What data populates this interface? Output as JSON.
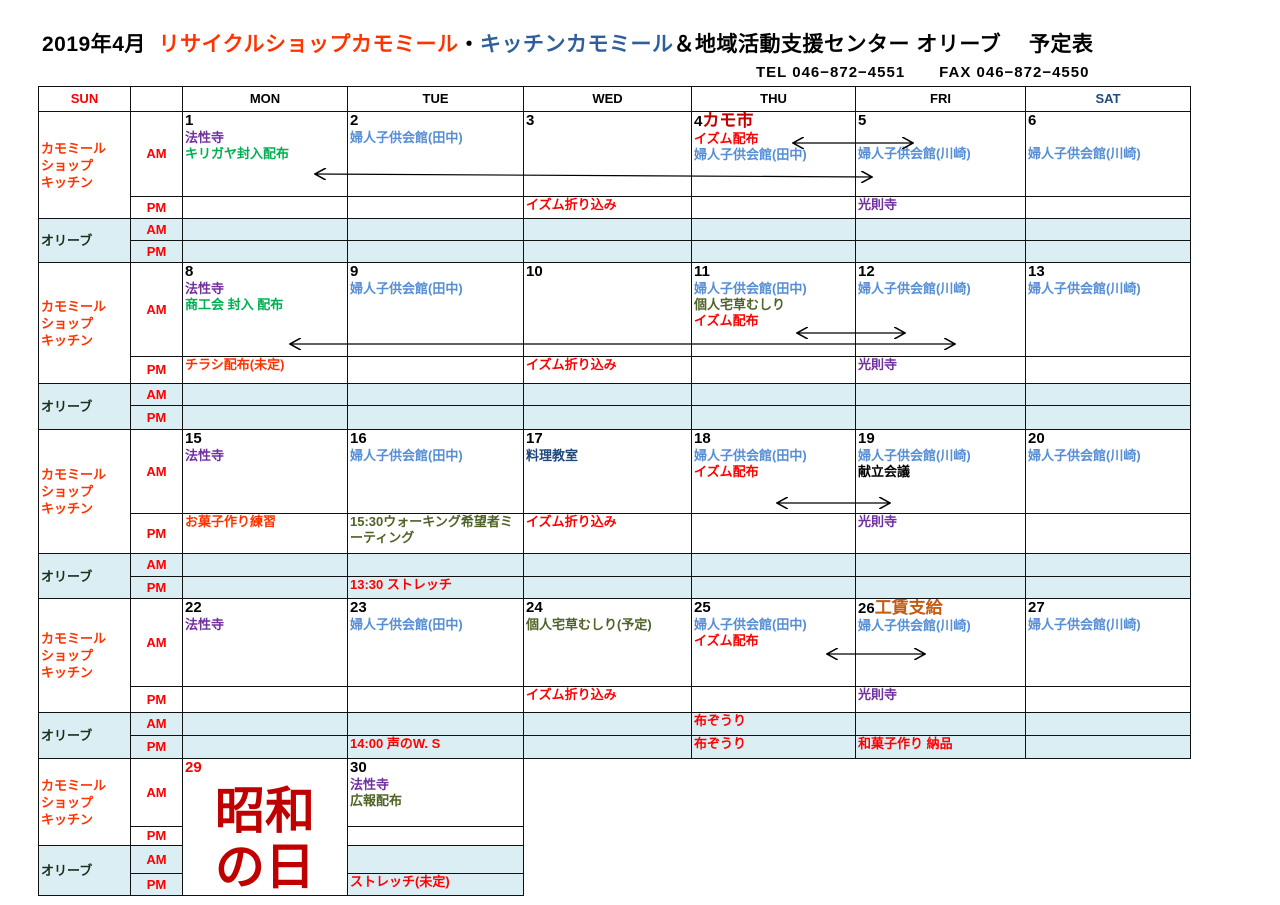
{
  "title": {
    "date": "2019年4月",
    "shop": "リサイクルショップカモミール",
    "sep": "・",
    "kitchen": "キッチンカモミール",
    "rest": "＆地域活動支援センター オリーブ　 予定表"
  },
  "contact": {
    "tel": "TEL 046−872−4551",
    "fax": "FAX 046−872−4550"
  },
  "colors": {
    "purple": "#7030a0",
    "blue": "#558ed5",
    "green": "#00b050",
    "red": "#ff0000",
    "orange": "#ff3300",
    "olive": "#4f6228",
    "navy": "#1f497d",
    "darkred": "#c00000",
    "brown": "#c55a11",
    "black": "#000000"
  },
  "header": [
    "SUN",
    "",
    "MON",
    "TUE",
    "WED",
    "THU",
    "FRI",
    "SAT"
  ],
  "labels": {
    "kamomile": "カモミール\nショップ\nキッチン",
    "olive": "オリーブ",
    "am": "AM",
    "pm": "PM"
  },
  "weeks": [
    {
      "days": [
        {
          "date": "1",
          "am": [
            {
              "t": "法性寺",
              "c": "purple"
            },
            {
              "t": "キリガヤ封入配布",
              "c": "green"
            }
          ]
        },
        {
          "date": "2",
          "am": [
            {
              "t": "婦人子供会館(田中)",
              "c": "blue"
            }
          ]
        },
        {
          "date": "3",
          "pm": [
            {
              "t": "イズム折り込み",
              "c": "red"
            }
          ]
        },
        {
          "date": "4",
          "title": "カモ市",
          "title_color": "darkred",
          "am": [
            {
              "t": "イズム配布",
              "c": "red"
            },
            {
              "t": "婦人子供会館(田中)",
              "c": "blue"
            }
          ]
        },
        {
          "date": "5",
          "am": [
            {
              "t": "",
              "c": "black"
            },
            {
              "t": "婦人子供会館(川崎)",
              "c": "blue"
            }
          ],
          "pm": [
            {
              "t": "光則寺",
              "c": "purple"
            }
          ]
        },
        {
          "date": "6",
          "am": [
            {
              "t": "",
              "c": "black"
            },
            {
              "t": "婦人子供会館(川崎)",
              "c": "blue"
            }
          ]
        }
      ]
    },
    {
      "days": [
        {
          "date": "8",
          "am": [
            {
              "t": "法性寺",
              "c": "purple"
            },
            {
              "t": "商工会 封入 配布",
              "c": "green"
            }
          ],
          "pm": [
            {
              "t": "チラシ配布(未定)",
              "c": "orange"
            }
          ]
        },
        {
          "date": "9",
          "am": [
            {
              "t": "婦人子供会館(田中)",
              "c": "blue"
            }
          ]
        },
        {
          "date": "10",
          "pm": [
            {
              "t": "イズム折り込み",
              "c": "red"
            }
          ]
        },
        {
          "date": "11",
          "am": [
            {
              "t": "婦人子供会館(田中)",
              "c": "blue"
            },
            {
              "t": "個人宅草むしり",
              "c": "olive"
            },
            {
              "t": "イズム配布",
              "c": "red"
            }
          ]
        },
        {
          "date": "12",
          "am": [
            {
              "t": "婦人子供会館(川崎)",
              "c": "blue"
            }
          ],
          "pm": [
            {
              "t": "光則寺",
              "c": "purple"
            }
          ]
        },
        {
          "date": "13",
          "am": [
            {
              "t": "婦人子供会館(川崎)",
              "c": "blue"
            }
          ]
        }
      ]
    },
    {
      "days": [
        {
          "date": "15",
          "am": [
            {
              "t": "法性寺",
              "c": "purple"
            }
          ],
          "pm": [
            {
              "t": "お菓子作り練習",
              "c": "orange"
            }
          ]
        },
        {
          "date": "16",
          "am": [
            {
              "t": "婦人子供会館(田中)",
              "c": "blue"
            }
          ],
          "pm": [
            {
              "t": "15:30ウォーキング希望者ミーティング",
              "c": "olive"
            }
          ],
          "opm": [
            {
              "t": "13:30 ストレッチ",
              "c": "red"
            }
          ]
        },
        {
          "date": "17",
          "am": [
            {
              "t": "料理教室",
              "c": "navy"
            }
          ],
          "pm": [
            {
              "t": "イズム折り込み",
              "c": "red"
            }
          ]
        },
        {
          "date": "18",
          "am": [
            {
              "t": "婦人子供会館(田中)",
              "c": "blue"
            },
            {
              "t": "イズム配布",
              "c": "red"
            }
          ]
        },
        {
          "date": "19",
          "am": [
            {
              "t": "婦人子供会館(川崎)",
              "c": "blue"
            },
            {
              "t": "献立会議",
              "c": "black"
            }
          ],
          "pm": [
            {
              "t": "光則寺",
              "c": "purple"
            }
          ]
        },
        {
          "date": "20",
          "am": [
            {
              "t": "婦人子供会館(川崎)",
              "c": "blue"
            }
          ]
        }
      ]
    },
    {
      "days": [
        {
          "date": "22",
          "am": [
            {
              "t": "法性寺",
              "c": "purple"
            }
          ]
        },
        {
          "date": "23",
          "am": [
            {
              "t": "婦人子供会館(田中)",
              "c": "blue"
            }
          ],
          "opm": [
            {
              "t": "14:00 声のW. S",
              "c": "red"
            }
          ]
        },
        {
          "date": "24",
          "am": [
            {
              "t": "個人宅草むしり(予定)",
              "c": "olive"
            }
          ],
          "pm": [
            {
              "t": "イズム折り込み",
              "c": "red"
            }
          ]
        },
        {
          "date": "25",
          "am": [
            {
              "t": "婦人子供会館(田中)",
              "c": "blue"
            },
            {
              "t": "イズム配布",
              "c": "red"
            }
          ],
          "oam": [
            {
              "t": "布ぞうり",
              "c": "red"
            }
          ],
          "opm": [
            {
              "t": "布ぞうり",
              "c": "red"
            }
          ]
        },
        {
          "date": "26",
          "title": "工賃支給",
          "title_color": "brown",
          "am": [
            {
              "t": "婦人子供会館(川崎)",
              "c": "blue"
            }
          ],
          "pm": [
            {
              "t": "光則寺",
              "c": "purple"
            }
          ],
          "opm": [
            {
              "t": "和菓子作り 納品",
              "c": "red"
            }
          ]
        },
        {
          "date": "27",
          "am": [
            {
              "t": "婦人子供会館(川崎)",
              "c": "blue"
            }
          ]
        }
      ]
    }
  ],
  "last_week": {
    "holiday": {
      "date": "29",
      "name": "昭和\nの日"
    },
    "day30": {
      "date": "30",
      "am": [
        {
          "t": "法性寺",
          "c": "purple"
        },
        {
          "t": "広報配布",
          "c": "olive"
        }
      ],
      "opm": [
        {
          "t": "ストレッチ(未定)",
          "c": "red"
        }
      ]
    }
  }
}
